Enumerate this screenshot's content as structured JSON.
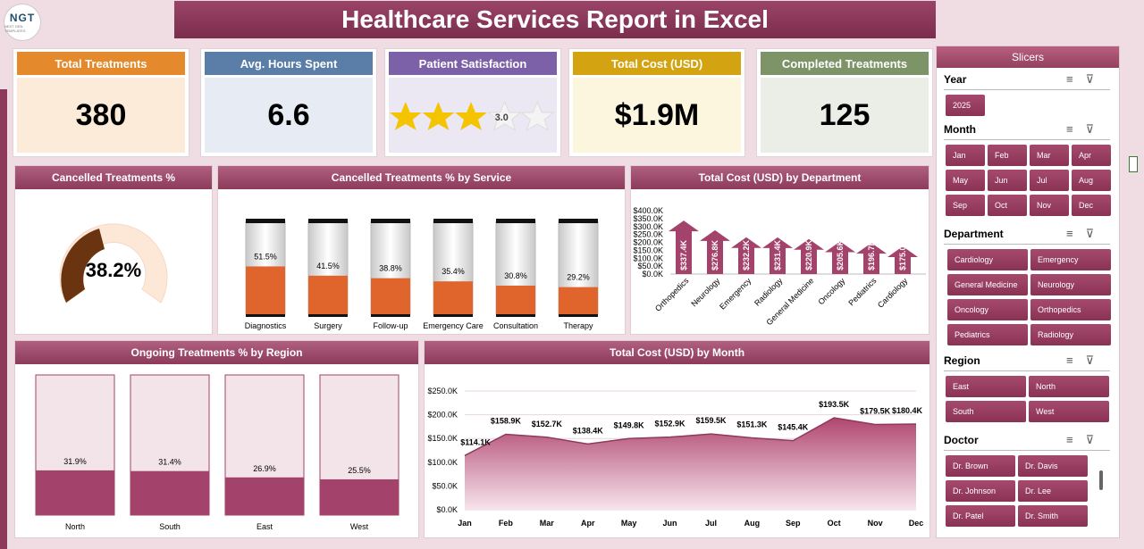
{
  "header": {
    "title": "Healthcare Services Report in Excel",
    "logo_text": "NGT",
    "logo_sub": "NEXT GEN TEMPLATES"
  },
  "kpis": [
    {
      "label": "Total Treatments",
      "value": "380",
      "color": "#e48a2d"
    },
    {
      "label": "Avg. Hours Spent",
      "value": "6.6",
      "color": "#5b7ea8"
    },
    {
      "label": "Patient Satisfaction",
      "value": "3.0",
      "stars_filled": 3,
      "stars_total": 5,
      "color": "#7d61a8"
    },
    {
      "label": "Total Cost (USD)",
      "value": "$1.9M",
      "color": "#d4a312"
    },
    {
      "label": "Completed Treatments",
      "value": "125",
      "color": "#7d9468"
    }
  ],
  "chart_data": [
    {
      "type": "pie",
      "title": "Cancelled Treatments %",
      "value_label": "38.2%",
      "values": [
        38.2,
        61.8
      ]
    },
    {
      "type": "bar",
      "title": "Cancelled Treatments % by Service",
      "categories": [
        "Diagnostics",
        "Surgery",
        "Follow-up",
        "Emergency Care",
        "Consultation",
        "Therapy"
      ],
      "values": [
        51.5,
        41.5,
        38.8,
        35.4,
        30.8,
        29.2
      ],
      "labels": [
        "51.5%",
        "41.5%",
        "38.8%",
        "35.4%",
        "30.8%",
        "29.2%"
      ],
      "ylim": [
        0,
        100
      ]
    },
    {
      "type": "bar",
      "title": "Total Cost (USD) by Department",
      "categories": [
        "Orthopedics",
        "Neurology",
        "Emergency",
        "Radiology",
        "General Medicine",
        "Oncology",
        "Pediatrics",
        "Cardiology"
      ],
      "values": [
        337.4,
        276.8,
        232.2,
        231.4,
        220.9,
        205.6,
        196.7,
        175.0
      ],
      "labels": [
        "$337.4K",
        "$276.8K",
        "$232.2K",
        "$231.4K",
        "$220.9K",
        "$205.6K",
        "$196.7K",
        "$175.0K"
      ],
      "yticks": [
        "$0.0K",
        "$50.0K",
        "$100.0K",
        "$150.0K",
        "$200.0K",
        "$250.0K",
        "$300.0K",
        "$350.0K",
        "$400.0K"
      ],
      "ylim": [
        0,
        400
      ]
    },
    {
      "type": "bar",
      "title": "Ongoing Treatments % by Region",
      "categories": [
        "North",
        "South",
        "East",
        "West"
      ],
      "values": [
        31.9,
        31.4,
        26.9,
        25.5
      ],
      "labels": [
        "31.9%",
        "31.4%",
        "26.9%",
        "25.5%"
      ],
      "ylim": [
        0,
        100
      ]
    },
    {
      "type": "area",
      "title": "Total Cost (USD) by Month",
      "categories": [
        "Jan",
        "Feb",
        "Mar",
        "Apr",
        "May",
        "Jun",
        "Jul",
        "Aug",
        "Sep",
        "Oct",
        "Nov",
        "Dec"
      ],
      "values": [
        114.1,
        158.9,
        152.7,
        138.4,
        149.8,
        152.9,
        159.5,
        151.3,
        145.4,
        193.5,
        179.5,
        180.4
      ],
      "labels": [
        "$114.1K",
        "$158.9K",
        "$152.7K",
        "$138.4K",
        "$149.8K",
        "$152.9K",
        "$159.5K",
        "$151.3K",
        "$145.4K",
        "$193.5K",
        "$179.5K",
        "$180.4K"
      ],
      "yticks": [
        "$0.0K",
        "$50.0K",
        "$100.0K",
        "$150.0K",
        "$200.0K",
        "$250.0K"
      ],
      "ylim": [
        0,
        250
      ]
    }
  ],
  "slicers": {
    "title": "Slicers",
    "year": {
      "label": "Year",
      "items": [
        "2025"
      ]
    },
    "month": {
      "label": "Month",
      "items": [
        "Jan",
        "Feb",
        "Mar",
        "Apr",
        "May",
        "Jun",
        "Jul",
        "Aug",
        "Sep",
        "Oct",
        "Nov",
        "Dec"
      ]
    },
    "department": {
      "label": "Department",
      "items": [
        "Cardiology",
        "Emergency",
        "General Medicine",
        "Neurology",
        "Oncology",
        "Orthopedics",
        "Pediatrics",
        "Radiology"
      ]
    },
    "region": {
      "label": "Region",
      "items": [
        "East",
        "North",
        "South",
        "West"
      ]
    },
    "doctor": {
      "label": "Doctor",
      "items": [
        "Dr. Brown",
        "Dr. Davis",
        "Dr. Johnson",
        "Dr. Lee",
        "Dr. Patel",
        "Dr. Smith"
      ]
    },
    "multiselect_icon": "multi-select-icon",
    "clear_filter_icon": "clear-filter-icon"
  },
  "colors": {
    "accent": "#8e3a5a",
    "bar_fill": "#e0652c",
    "region_fill": "#a3426a"
  }
}
